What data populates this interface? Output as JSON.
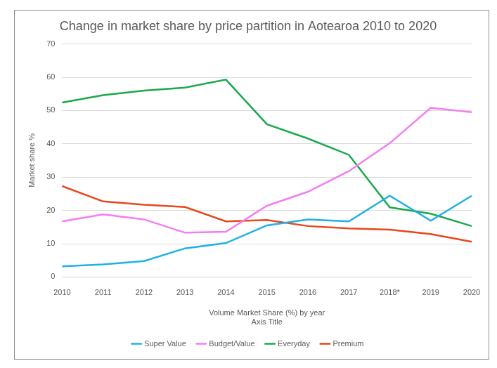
{
  "chart_data": {
    "type": "line",
    "title": "Change in market share by price partition in Aotearoa 2010 to 2020",
    "x_label": [
      "Volume Market Share (%) by year",
      "Axis Title"
    ],
    "y_label": "Market share %",
    "categories": [
      "2010",
      "2011",
      "2012",
      "2013",
      "2014",
      "2015",
      "2016",
      "2017",
      "2018*",
      "2019",
      "2020"
    ],
    "series": [
      {
        "name": "Super Value",
        "color": "#1fb0e6",
        "values": [
          3.2,
          3.8,
          4.8,
          8.6,
          10.2,
          15.5,
          17.3,
          16.7,
          24.4,
          16.9,
          24.4
        ]
      },
      {
        "name": "Budget/Value",
        "color": "#f47cf4",
        "values": [
          16.7,
          18.8,
          17.3,
          13.3,
          13.6,
          21.4,
          25.6,
          31.8,
          40.2,
          50.8,
          49.5
        ]
      },
      {
        "name": "Everyday",
        "color": "#1aa84b",
        "values": [
          52.4,
          54.6,
          56.0,
          56.9,
          59.3,
          45.9,
          41.6,
          36.7,
          20.9,
          19.0,
          15.3
        ]
      },
      {
        "name": "Premium",
        "color": "#e8461c",
        "values": [
          27.3,
          22.7,
          21.7,
          21.0,
          16.7,
          17.1,
          15.3,
          14.6,
          14.2,
          12.9,
          10.6
        ]
      }
    ],
    "ylim": [
      0,
      70
    ],
    "yticks": [
      0,
      10,
      20,
      30,
      40,
      50,
      60,
      70
    ],
    "grid": true,
    "legend": "bottom"
  }
}
